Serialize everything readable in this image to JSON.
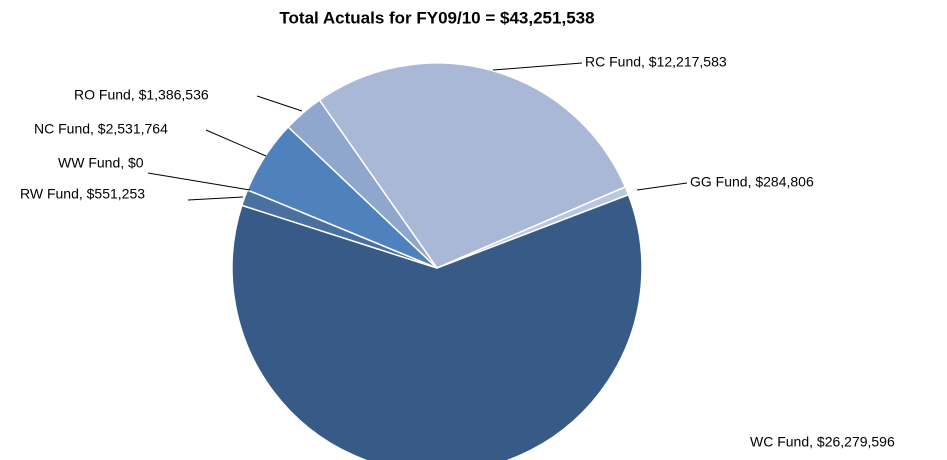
{
  "chart_data": {
    "type": "pie",
    "title": "Total Actuals for FY09/10 = $43,251,538",
    "categories": [
      "RC Fund",
      "GG Fund",
      "WC Fund",
      "RW Fund",
      "WW Fund",
      "NC Fund",
      "RO Fund"
    ],
    "values": [
      12217583,
      284806,
      26279596,
      551253,
      0,
      2531764,
      1386536
    ],
    "labels": [
      "RC Fund, $12,217,583",
      "GG Fund, $284,806",
      "WC Fund, $26,279,596",
      "RW Fund, $551,253",
      "WW Fund, $0",
      "NC Fund, $2,531,764",
      "RO Fund, $1,386,536"
    ],
    "colors": [
      "#a9b8d7",
      "#b9c7e1",
      "#375a86",
      "#4a70a2",
      "#4a70a2",
      "#4f81bd",
      "#8fa6cd"
    ]
  }
}
